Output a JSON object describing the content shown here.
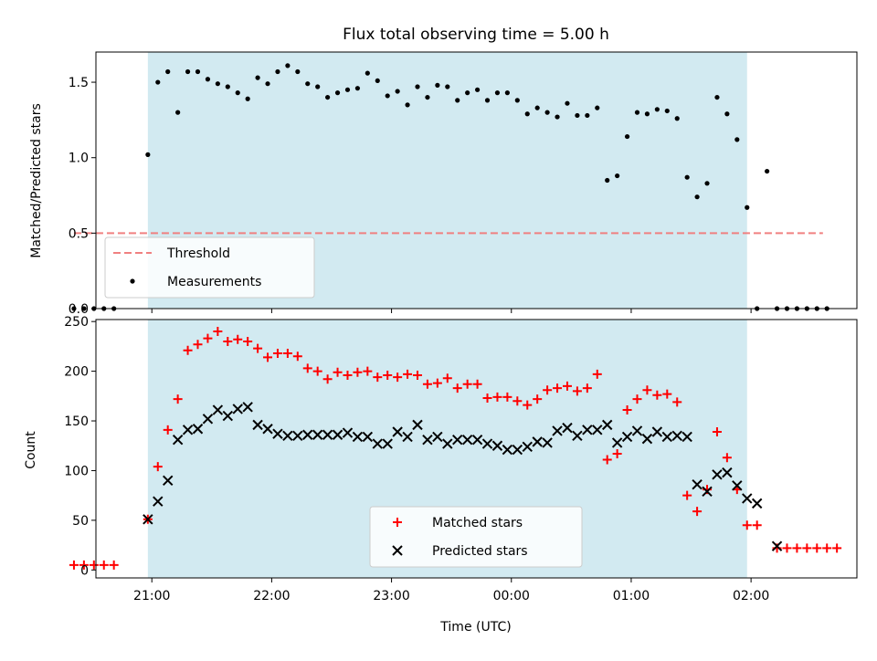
{
  "figure": {
    "title": "Flux total observing time = 5.00 h",
    "xlabel": "Time (UTC)",
    "x_tick_labels": [
      "21:00",
      "22:00",
      "23:00",
      "00:00",
      "01:00",
      "02:00"
    ]
  },
  "colors": {
    "shade": "#add8e6",
    "threshold": "#f08080",
    "measurements": "#000000",
    "matched": "#ff0000",
    "predicted": "#000000"
  },
  "chart_data": [
    {
      "type": "scatter",
      "panel": "top",
      "ylabel": "Matched/Predicted stars",
      "xlim": [
        "20:32",
        "02:53"
      ],
      "ylim": [
        0,
        1.7
      ],
      "y_ticks": [
        0.0,
        0.5,
        1.0,
        1.5
      ],
      "y_tick_labels": [
        "0.0",
        "0.5",
        "1.0",
        "1.5"
      ],
      "shaded_region": [
        "20:58",
        "01:58"
      ],
      "legend": {
        "position": "lower-left",
        "entries": [
          "Threshold",
          "Measurements"
        ]
      },
      "threshold": {
        "name": "Threshold",
        "value": 0.5,
        "x_range": [
          "20:21",
          "02:36"
        ]
      },
      "series": [
        {
          "name": "Measurements",
          "marker": "dot",
          "points": [
            [
              "20:21",
              0
            ],
            [
              "20:26",
              0
            ],
            [
              "20:31",
              0
            ],
            [
              "20:36",
              0
            ],
            [
              "20:41",
              0
            ],
            [
              "20:58",
              1.02
            ],
            [
              "21:03",
              1.5
            ],
            [
              "21:08",
              1.57
            ],
            [
              "21:13",
              1.3
            ],
            [
              "21:18",
              1.57
            ],
            [
              "21:23",
              1.57
            ],
            [
              "21:28",
              1.52
            ],
            [
              "21:33",
              1.49
            ],
            [
              "21:38",
              1.47
            ],
            [
              "21:43",
              1.43
            ],
            [
              "21:48",
              1.39
            ],
            [
              "21:53",
              1.53
            ],
            [
              "21:58",
              1.49
            ],
            [
              "22:03",
              1.57
            ],
            [
              "22:08",
              1.61
            ],
            [
              "22:13",
              1.57
            ],
            [
              "22:18",
              1.49
            ],
            [
              "22:23",
              1.47
            ],
            [
              "22:28",
              1.4
            ],
            [
              "22:33",
              1.43
            ],
            [
              "22:38",
              1.45
            ],
            [
              "22:43",
              1.46
            ],
            [
              "22:48",
              1.56
            ],
            [
              "22:53",
              1.51
            ],
            [
              "22:58",
              1.41
            ],
            [
              "23:03",
              1.44
            ],
            [
              "23:08",
              1.35
            ],
            [
              "23:13",
              1.47
            ],
            [
              "23:18",
              1.4
            ],
            [
              "23:23",
              1.48
            ],
            [
              "23:28",
              1.47
            ],
            [
              "23:33",
              1.38
            ],
            [
              "23:38",
              1.43
            ],
            [
              "23:43",
              1.45
            ],
            [
              "23:48",
              1.38
            ],
            [
              "23:53",
              1.43
            ],
            [
              "23:58",
              1.43
            ],
            [
              "00:03",
              1.38
            ],
            [
              "00:08",
              1.29
            ],
            [
              "00:13",
              1.33
            ],
            [
              "00:18",
              1.3
            ],
            [
              "00:23",
              1.27
            ],
            [
              "00:28",
              1.36
            ],
            [
              "00:33",
              1.28
            ],
            [
              "00:38",
              1.28
            ],
            [
              "00:43",
              1.33
            ],
            [
              "00:48",
              0.85
            ],
            [
              "00:53",
              0.88
            ],
            [
              "00:58",
              1.14
            ],
            [
              "01:03",
              1.3
            ],
            [
              "01:08",
              1.29
            ],
            [
              "01:13",
              1.32
            ],
            [
              "01:18",
              1.31
            ],
            [
              "01:23",
              1.26
            ],
            [
              "01:28",
              0.87
            ],
            [
              "01:33",
              0.74
            ],
            [
              "01:38",
              0.83
            ],
            [
              "01:43",
              1.4
            ],
            [
              "01:48",
              1.29
            ],
            [
              "01:53",
              1.12
            ],
            [
              "01:58",
              0.67
            ],
            [
              "02:03",
              0
            ],
            [
              "02:08",
              0.91
            ],
            [
              "02:13",
              0
            ],
            [
              "02:18",
              0
            ],
            [
              "02:23",
              0
            ],
            [
              "02:28",
              0
            ],
            [
              "02:33",
              0
            ],
            [
              "02:38",
              0
            ]
          ]
        }
      ]
    },
    {
      "type": "scatter",
      "panel": "bottom",
      "ylabel": "Count",
      "xlim": [
        "20:32",
        "02:53"
      ],
      "ylim": [
        -8,
        252
      ],
      "y_ticks": [
        0,
        50,
        100,
        150,
        200,
        250
      ],
      "y_tick_labels": [
        "0",
        "50",
        "100",
        "150",
        "200",
        "250"
      ],
      "shaded_region": [
        "20:58",
        "01:58"
      ],
      "legend": {
        "position": "lower-center",
        "entries": [
          "Matched stars",
          "Predicted stars"
        ]
      },
      "series": [
        {
          "name": "Matched stars",
          "marker": "plus",
          "points": [
            [
              "20:21",
              5
            ],
            [
              "20:26",
              5
            ],
            [
              "20:31",
              5
            ],
            [
              "20:36",
              5
            ],
            [
              "20:41",
              5
            ],
            [
              "20:58",
              51
            ],
            [
              "21:03",
              104
            ],
            [
              "21:08",
              141
            ],
            [
              "21:13",
              172
            ],
            [
              "21:18",
              221
            ],
            [
              "21:23",
              227
            ],
            [
              "21:28",
              233
            ],
            [
              "21:33",
              240
            ],
            [
              "21:38",
              230
            ],
            [
              "21:43",
              232
            ],
            [
              "21:48",
              230
            ],
            [
              "21:53",
              223
            ],
            [
              "21:58",
              214
            ],
            [
              "22:03",
              218
            ],
            [
              "22:08",
              218
            ],
            [
              "22:13",
              215
            ],
            [
              "22:18",
              203
            ],
            [
              "22:23",
              200
            ],
            [
              "22:28",
              192
            ],
            [
              "22:33",
              199
            ],
            [
              "22:38",
              196
            ],
            [
              "22:43",
              199
            ],
            [
              "22:48",
              200
            ],
            [
              "22:53",
              194
            ],
            [
              "22:58",
              196
            ],
            [
              "23:03",
              194
            ],
            [
              "23:08",
              197
            ],
            [
              "23:13",
              196
            ],
            [
              "23:18",
              187
            ],
            [
              "23:23",
              188
            ],
            [
              "23:28",
              193
            ],
            [
              "23:33",
              183
            ],
            [
              "23:38",
              187
            ],
            [
              "23:43",
              187
            ],
            [
              "23:48",
              173
            ],
            [
              "23:53",
              174
            ],
            [
              "23:58",
              174
            ],
            [
              "00:03",
              170
            ],
            [
              "00:08",
              166
            ],
            [
              "00:13",
              172
            ],
            [
              "00:18",
              181
            ],
            [
              "00:23",
              183
            ],
            [
              "00:28",
              185
            ],
            [
              "00:33",
              180
            ],
            [
              "00:38",
              183
            ],
            [
              "00:43",
              197
            ],
            [
              "00:48",
              111
            ],
            [
              "00:53",
              117
            ],
            [
              "00:58",
              161
            ],
            [
              "01:03",
              172
            ],
            [
              "01:08",
              181
            ],
            [
              "01:13",
              176
            ],
            [
              "01:18",
              177
            ],
            [
              "01:23",
              169
            ],
            [
              "01:28",
              75
            ],
            [
              "01:33",
              59
            ],
            [
              "01:38",
              81
            ],
            [
              "01:43",
              139
            ],
            [
              "01:48",
              113
            ],
            [
              "01:53",
              81
            ],
            [
              "01:58",
              45
            ],
            [
              "02:03",
              45
            ],
            [
              "02:13",
              22
            ],
            [
              "02:18",
              22
            ],
            [
              "02:23",
              22
            ],
            [
              "02:28",
              22
            ],
            [
              "02:33",
              22
            ],
            [
              "02:38",
              22
            ],
            [
              "02:43",
              22
            ]
          ]
        },
        {
          "name": "Predicted stars",
          "marker": "x",
          "points": [
            [
              "20:58",
              51
            ],
            [
              "21:03",
              69
            ],
            [
              "21:08",
              90
            ],
            [
              "21:13",
              131
            ],
            [
              "21:18",
              141
            ],
            [
              "21:23",
              142
            ],
            [
              "21:28",
              152
            ],
            [
              "21:33",
              161
            ],
            [
              "21:38",
              155
            ],
            [
              "21:43",
              162
            ],
            [
              "21:48",
              164
            ],
            [
              "21:53",
              146
            ],
            [
              "21:58",
              142
            ],
            [
              "22:03",
              137
            ],
            [
              "22:08",
              135
            ],
            [
              "22:13",
              135
            ],
            [
              "22:18",
              136
            ],
            [
              "22:23",
              136
            ],
            [
              "22:28",
              136
            ],
            [
              "22:33",
              136
            ],
            [
              "22:38",
              138
            ],
            [
              "22:43",
              134
            ],
            [
              "22:48",
              134
            ],
            [
              "22:53",
              127
            ],
            [
              "22:58",
              127
            ],
            [
              "23:03",
              139
            ],
            [
              "23:08",
              134
            ],
            [
              "23:13",
              146
            ],
            [
              "23:18",
              131
            ],
            [
              "23:23",
              134
            ],
            [
              "23:28",
              127
            ],
            [
              "23:33",
              131
            ],
            [
              "23:38",
              131
            ],
            [
              "23:43",
              131
            ],
            [
              "23:48",
              127
            ],
            [
              "23:53",
              125
            ],
            [
              "23:58",
              121
            ],
            [
              "00:03",
              121
            ],
            [
              "00:08",
              124
            ],
            [
              "00:13",
              129
            ],
            [
              "00:18",
              128
            ],
            [
              "00:23",
              140
            ],
            [
              "00:28",
              143
            ],
            [
              "00:33",
              135
            ],
            [
              "00:38",
              141
            ],
            [
              "00:43",
              141
            ],
            [
              "00:48",
              146
            ],
            [
              "00:53",
              128
            ],
            [
              "00:58",
              134
            ],
            [
              "01:03",
              140
            ],
            [
              "01:08",
              132
            ],
            [
              "01:13",
              139
            ],
            [
              "01:18",
              134
            ],
            [
              "01:23",
              135
            ],
            [
              "01:28",
              134
            ],
            [
              "01:33",
              86
            ],
            [
              "01:38",
              79
            ],
            [
              "01:43",
              96
            ],
            [
              "01:48",
              98
            ],
            [
              "01:53",
              85
            ],
            [
              "01:58",
              72
            ],
            [
              "02:03",
              67
            ],
            [
              "02:13",
              24
            ]
          ]
        }
      ]
    }
  ]
}
